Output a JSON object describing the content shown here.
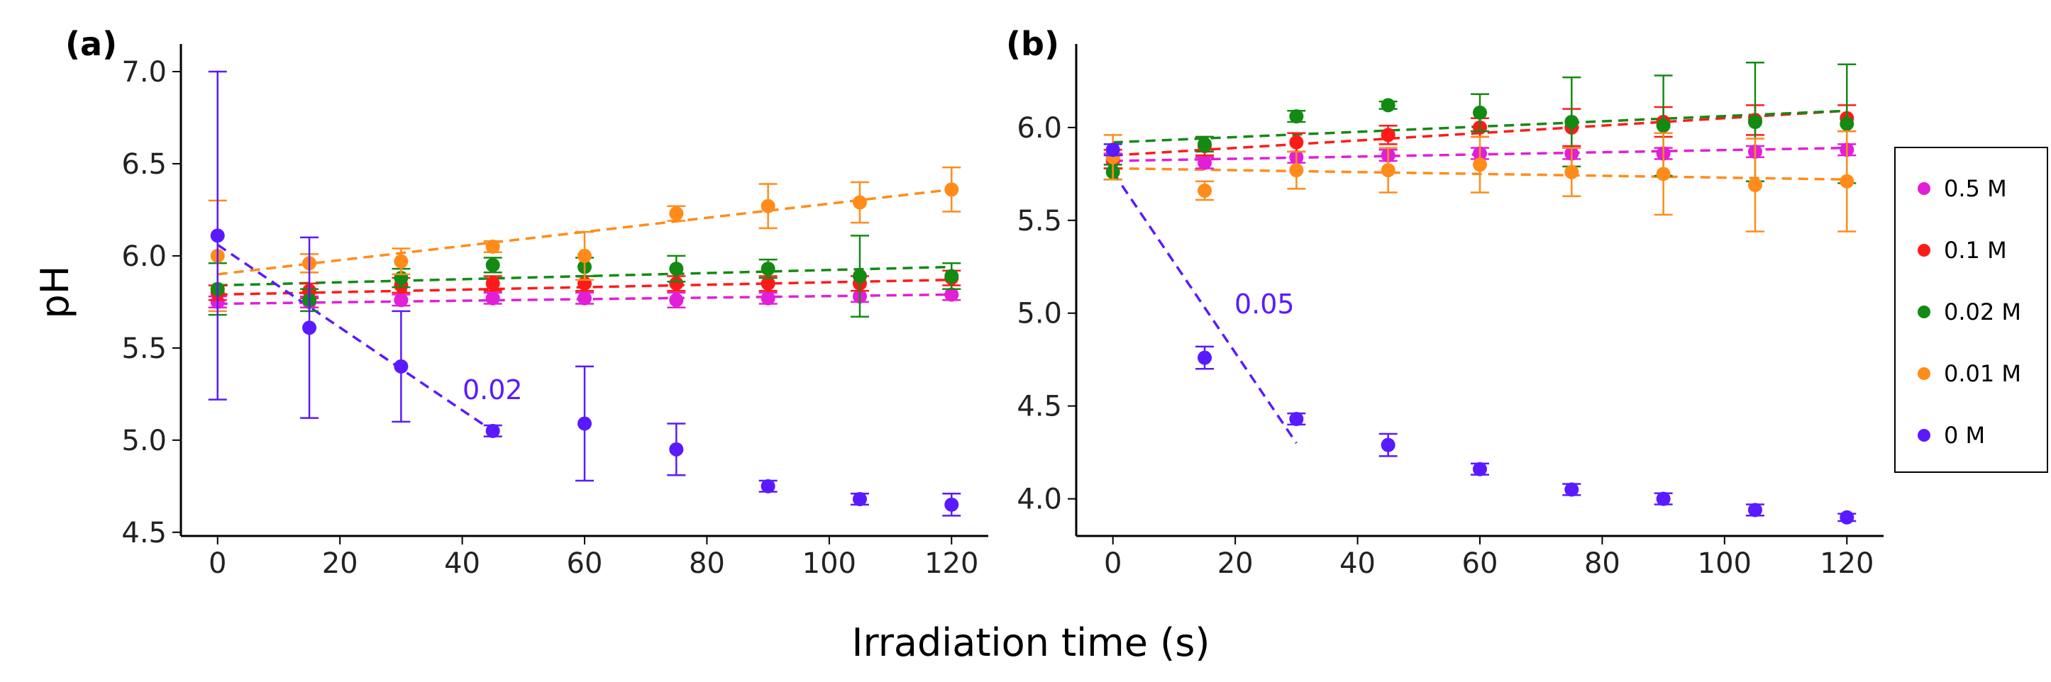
{
  "chart_data": {
    "type": "scatter",
    "shared_xlabel": "Irradiation time (s)",
    "shared_ylabel": "pH",
    "legend": {
      "placement": "right",
      "entries": [
        {
          "label": "0.5 M",
          "color": "#e11fd8"
        },
        {
          "label": "0.1 M",
          "color": "#ff1a1a"
        },
        {
          "label": "0.02 M",
          "color": "#138a13"
        },
        {
          "label": "0.01 M",
          "color": "#ff8c1a"
        },
        {
          "label": "0 M",
          "color": "#5a1aff"
        }
      ]
    },
    "panels": [
      {
        "id": "a",
        "label": "(a)",
        "xlim": [
          -6,
          126
        ],
        "ylim": [
          4.48,
          7.15
        ],
        "xticks": [
          "0",
          "20",
          "40",
          "60",
          "80",
          "100",
          "120"
        ],
        "yticks": [
          "4.5",
          "5.0",
          "5.5",
          "6.0",
          "6.5",
          "7.0"
        ],
        "x": [
          0,
          15,
          30,
          45,
          60,
          75,
          90,
          105,
          120
        ],
        "series": [
          {
            "name": "0.5 M",
            "color": "#e11fd8",
            "values": [
              5.75,
              5.75,
              5.76,
              5.77,
              5.77,
              5.76,
              5.77,
              5.78,
              5.79
            ],
            "errors": [
              0.03,
              0.03,
              0.03,
              0.03,
              0.03,
              0.04,
              0.03,
              0.03,
              0.03
            ],
            "fit": [
              5.74,
              5.79
            ]
          },
          {
            "name": "0.1 M",
            "color": "#ff1a1a",
            "values": [
              5.8,
              5.81,
              5.84,
              5.85,
              5.85,
              5.85,
              5.85,
              5.85,
              5.88
            ],
            "errors": [
              0.04,
              0.04,
              0.04,
              0.04,
              0.04,
              0.04,
              0.04,
              0.04,
              0.04
            ],
            "fit": [
              5.79,
              5.87
            ]
          },
          {
            "name": "0.02 M",
            "color": "#138a13",
            "values": [
              5.82,
              5.76,
              5.88,
              5.95,
              5.94,
              5.93,
              5.93,
              5.89,
              5.89
            ],
            "errors": [
              0.14,
              0.06,
              0.05,
              0.04,
              0.05,
              0.07,
              0.05,
              0.22,
              0.07
            ],
            "fit": [
              5.84,
              5.94
            ]
          },
          {
            "name": "0.01 M",
            "color": "#ff8c1a",
            "values": [
              6.0,
              5.96,
              5.97,
              6.05,
              6.0,
              6.23,
              6.27,
              6.29,
              6.36
            ],
            "errors": [
              0.3,
              0.05,
              0.07,
              0.03,
              0.13,
              0.04,
              0.12,
              0.11,
              0.12
            ],
            "fit": [
              5.9,
              6.36
            ]
          },
          {
            "name": "0 M",
            "color": "#5a1aff",
            "values": [
              6.11,
              5.61,
              5.4,
              5.05,
              5.09,
              4.95,
              4.75,
              4.68,
              4.65
            ],
            "errors": [
              0.89,
              0.49,
              0.3,
              0.03,
              0.31,
              0.14,
              0.03,
              0.03,
              0.06
            ],
            "fit_x": [
              0,
              45
            ],
            "fit": [
              6.06,
              5.05
            ]
          }
        ],
        "slope_label": "0.02"
      },
      {
        "id": "b",
        "label": "(b)",
        "xlim": [
          -6,
          126
        ],
        "ylim": [
          3.8,
          6.45
        ],
        "xticks": [
          "0",
          "20",
          "40",
          "60",
          "80",
          "100",
          "120"
        ],
        "yticks": [
          "4.0",
          "4.5",
          "5.0",
          "5.5",
          "6.0"
        ],
        "x": [
          0,
          15,
          30,
          45,
          60,
          75,
          90,
          105,
          120
        ],
        "series": [
          {
            "name": "0.5 M",
            "color": "#e11fd8",
            "values": [
              5.82,
              5.81,
              5.84,
              5.85,
              5.86,
              5.86,
              5.86,
              5.87,
              5.88
            ],
            "errors": [
              0.04,
              0.03,
              0.03,
              0.03,
              0.03,
              0.03,
              0.03,
              0.03,
              0.03
            ],
            "fit": [
              5.82,
              5.89
            ]
          },
          {
            "name": "0.1 M",
            "color": "#ff1a1a",
            "values": [
              5.83,
              5.9,
              5.92,
              5.96,
              6.0,
              6.0,
              6.03,
              6.04,
              6.05
            ],
            "errors": [
              0.05,
              0.05,
              0.05,
              0.05,
              0.05,
              0.1,
              0.08,
              0.08,
              0.07
            ],
            "fit": [
              5.85,
              6.09
            ]
          },
          {
            "name": "0.02 M",
            "color": "#138a13",
            "values": [
              5.76,
              5.91,
              6.06,
              6.12,
              6.08,
              6.03,
              6.01,
              6.03,
              6.02
            ],
            "errors": [
              0.04,
              0.04,
              0.03,
              0.02,
              0.1,
              0.24,
              0.27,
              0.32,
              0.32
            ],
            "fit": [
              5.92,
              6.09
            ]
          },
          {
            "name": "0.01 M",
            "color": "#ff8c1a",
            "values": [
              5.84,
              5.66,
              5.77,
              5.77,
              5.8,
              5.76,
              5.75,
              5.69,
              5.71
            ],
            "errors": [
              0.12,
              0.05,
              0.1,
              0.12,
              0.15,
              0.13,
              0.22,
              0.25,
              0.27
            ],
            "fit": [
              5.78,
              5.72
            ]
          },
          {
            "name": "0 M",
            "color": "#5a1aff",
            "values": [
              5.88,
              4.76,
              4.43,
              4.29,
              4.16,
              4.05,
              4.0,
              3.94,
              3.9
            ],
            "errors": [
              0.03,
              0.06,
              0.03,
              0.06,
              0.03,
              0.03,
              0.03,
              0.03,
              0.02
            ],
            "fit_x": [
              0,
              30
            ],
            "fit": [
              5.76,
              4.3
            ]
          }
        ],
        "slope_label": "0.05"
      }
    ]
  }
}
